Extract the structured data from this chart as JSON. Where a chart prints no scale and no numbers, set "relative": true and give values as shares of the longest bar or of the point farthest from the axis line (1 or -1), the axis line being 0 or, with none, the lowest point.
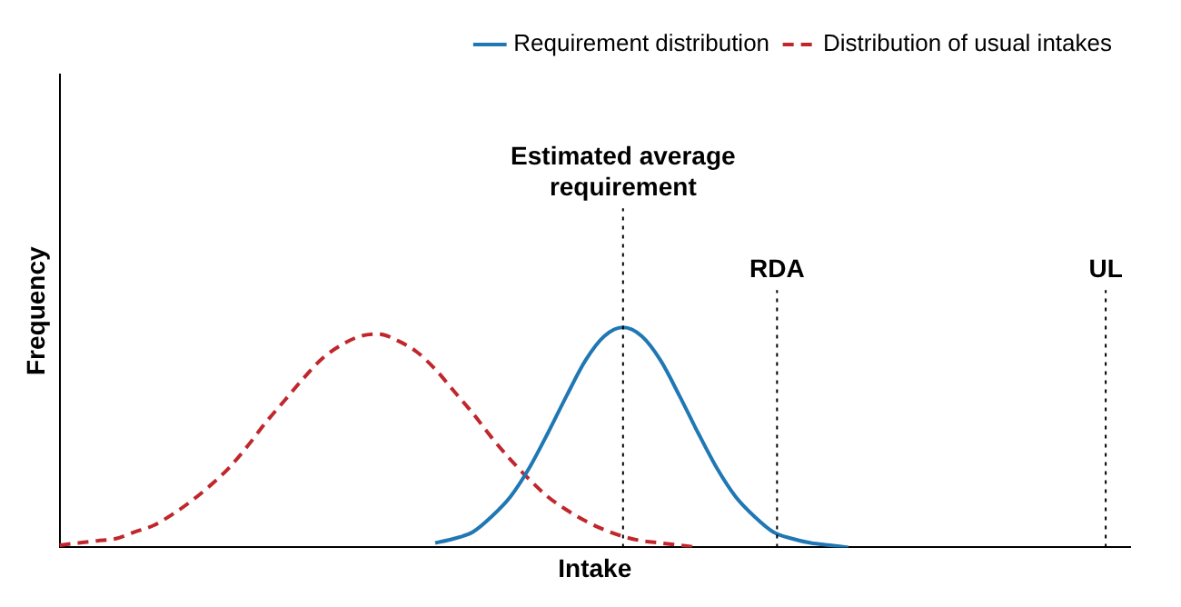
{
  "chart_data": {
    "type": "line",
    "relative": true,
    "xlabel": "Intake",
    "ylabel": "Frequency",
    "legend": "top right",
    "grid": false,
    "tick_labels": false,
    "marker": "none",
    "categories": [
      null,
      null,
      null,
      null,
      null,
      null,
      null,
      null,
      null,
      null,
      null,
      null,
      null,
      null,
      null,
      null,
      null,
      null,
      null,
      null,
      null,
      null,
      null,
      null,
      null,
      null,
      null,
      null,
      null,
      null,
      null,
      null,
      null,
      null,
      null,
      null,
      null,
      null,
      null,
      null,
      null,
      null,
      null,
      null,
      null,
      null,
      null,
      null,
      null,
      null,
      null,
      null,
      null,
      null,
      null,
      null,
      null,
      null
    ],
    "series": [
      {
        "name": "Requirement distribution",
        "color": "#1f77b4",
        "line_style": "solid",
        "values": [
          null,
          null,
          null,
          null,
          null,
          null,
          null,
          null,
          null,
          null,
          null,
          null,
          null,
          null,
          null,
          null,
          null,
          null,
          null,
          null,
          0.02,
          0.04,
          0.07,
          0.14,
          0.23,
          0.36,
          0.52,
          0.69,
          0.85,
          0.96,
          1,
          0.96,
          0.85,
          0.69,
          0.52,
          0.36,
          0.23,
          0.14,
          0.07,
          0.04,
          0.02,
          0.01,
          0,
          null,
          null,
          null,
          null,
          null,
          null,
          null,
          null,
          null,
          null,
          null,
          null,
          null,
          null,
          null
        ]
      },
      {
        "name": "Distribution of usual intakes",
        "color": "#c0272d",
        "line_style": "dashed",
        "values": [
          0.01,
          0.02,
          0.03,
          0.04,
          0.07,
          0.1,
          0.15,
          0.21,
          0.28,
          0.36,
          0.46,
          0.57,
          0.67,
          0.77,
          0.86,
          0.92,
          0.96,
          0.97,
          0.94,
          0.89,
          0.81,
          0.71,
          0.61,
          0.5,
          0.4,
          0.31,
          0.23,
          0.17,
          0.12,
          0.08,
          0.05,
          0.03,
          0.02,
          0.01,
          0,
          null,
          null,
          null,
          null,
          null,
          null,
          null,
          null,
          null,
          null,
          null,
          null,
          null,
          null,
          null,
          null,
          null,
          null,
          null,
          null,
          null,
          null,
          null
        ]
      }
    ],
    "annotations": [
      "Estimated average requirement",
      "RDA",
      "UL"
    ]
  }
}
